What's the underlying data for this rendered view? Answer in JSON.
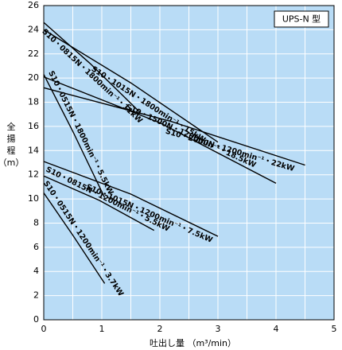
{
  "chart_data": {
    "type": "line",
    "badge": "UPS-N 型",
    "ylabel": "全揚程\n（m）",
    "xlabel": "吐出し量 （m³/min）",
    "xlim": [
      0,
      5
    ],
    "xticks": [
      0,
      1,
      2,
      3,
      4,
      5
    ],
    "xgrid": [
      0.5,
      1,
      1.5,
      2,
      2.5,
      3,
      3.5,
      4,
      4.5
    ],
    "ylim": [
      0,
      26
    ],
    "yticks": [
      0,
      2,
      4,
      6,
      8,
      10,
      12,
      14,
      16,
      18,
      20,
      22,
      24,
      26
    ],
    "grid": true,
    "background": "#b9dcf6",
    "grid_color": "#ffffff",
    "series": [
      {
        "name": "S10・0815N・1800min⁻¹・11kW",
        "color": "#000000",
        "x": [
          0,
          0.8,
          1.65
        ],
        "values": [
          24.6,
          21.2,
          17.2
        ]
      },
      {
        "name": "S10・1015N・1800min⁻¹・15kW",
        "color": "#000000",
        "x": [
          0,
          1.5,
          3
        ],
        "values": [
          24,
          19.6,
          14.7
        ]
      },
      {
        "name": "S10・2000N・1200min⁻¹・22kW",
        "color": "#000000",
        "x": [
          0,
          2.2,
          4.5
        ],
        "values": [
          19.2,
          16.4,
          12.8
        ]
      },
      {
        "name": "S10・1500N・1200min⁻¹・18.5kW",
        "color": "#000000",
        "x": [
          0,
          2,
          4
        ],
        "values": [
          20.1,
          16.3,
          11.3
        ]
      },
      {
        "name": "S10・0515N・1800min⁻¹・5.5kW",
        "color": "#000000",
        "x": [
          0,
          0.5,
          1.05
        ],
        "values": [
          20.3,
          15.6,
          10.1
        ]
      },
      {
        "name": "S10・1015N・1200min⁻¹・7.5kW",
        "color": "#000000",
        "x": [
          0,
          1.5,
          3
        ],
        "values": [
          13.1,
          10.4,
          6.9
        ]
      },
      {
        "name": "S10・0815N・1200min⁻¹・5.5kW",
        "color": "#000000",
        "x": [
          0,
          0.95,
          1.9
        ],
        "values": [
          11.9,
          9.9,
          7.4
        ]
      },
      {
        "name": "S10・0515N・1200min⁻¹・3.7kW",
        "color": "#000000",
        "x": [
          0,
          0.5,
          1.05
        ],
        "values": [
          10.5,
          7,
          3
        ]
      }
    ]
  }
}
